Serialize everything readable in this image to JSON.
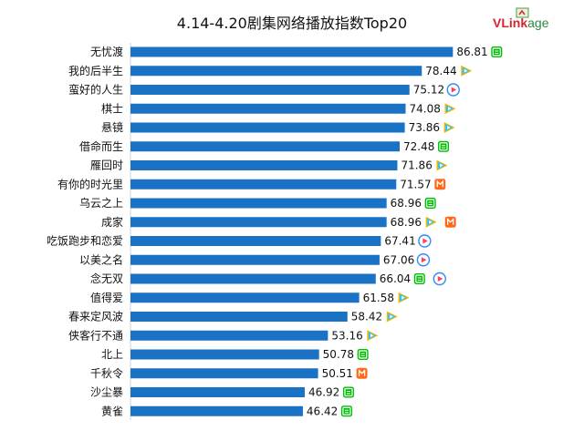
{
  "chart_data": {
    "type": "bar",
    "orientation": "horizontal",
    "title": "4.14-4.20剧集网络播放指数Top20",
    "categories": [
      "无忧渡",
      "我的后半生",
      "蛮好的人生",
      "棋士",
      "悬镜",
      "借命而生",
      "雁回时",
      "有你的时光里",
      "乌云之上",
      "成家",
      "吃饭跑步和恋爱",
      "以美之名",
      "念无双",
      "值得爱",
      "春来定风波",
      "侠客行不通",
      "北上",
      "千秋令",
      "沙尘暴",
      "黄雀"
    ],
    "values": [
      86.81,
      78.44,
      75.12,
      74.08,
      73.86,
      72.48,
      71.86,
      71.57,
      68.96,
      68.96,
      67.41,
      67.06,
      66.04,
      61.58,
      58.42,
      53.16,
      50.78,
      50.51,
      46.92,
      46.42
    ],
    "value_labels": [
      "86.81",
      "78.44",
      "75.12",
      "74.08",
      "73.86",
      "72.48",
      "71.86",
      "71.57",
      "68.96",
      "68.96",
      "67.41",
      "67.06",
      "66.04",
      "61.58",
      "58.42",
      "53.16",
      "50.78",
      "50.51",
      "46.92",
      "46.42"
    ],
    "platforms": [
      [
        "iqiyi"
      ],
      [
        "tencent"
      ],
      [
        "youku"
      ],
      [
        "tencent"
      ],
      [
        "tencent"
      ],
      [
        "iqiyi"
      ],
      [
        "tencent"
      ],
      [
        "mgtv"
      ],
      [
        "iqiyi"
      ],
      [
        "tencent",
        "mgtv"
      ],
      [
        "youku"
      ],
      [
        "youku"
      ],
      [
        "iqiyi",
        "youku"
      ],
      [
        "tencent"
      ],
      [
        "tencent"
      ],
      [
        "tencent"
      ],
      [
        "iqiyi"
      ],
      [
        "mgtv"
      ],
      [
        "iqiyi"
      ],
      [
        "iqiyi"
      ]
    ],
    "xlim": [
      0,
      100
    ],
    "grid": false,
    "legend": "none",
    "colors": {
      "bar": "#1a72c4",
      "iqiyi": "#00be06",
      "tencent": "#1e9fff",
      "youku": "#2b8cff",
      "mgtv": "#ff6a1a"
    }
  },
  "logo": {
    "text": "VLinkage"
  },
  "icons": {
    "iqiyi": "iqiyi-icon",
    "tencent": "tencent-video-icon",
    "youku": "youku-icon",
    "mgtv": "mgtv-icon"
  }
}
